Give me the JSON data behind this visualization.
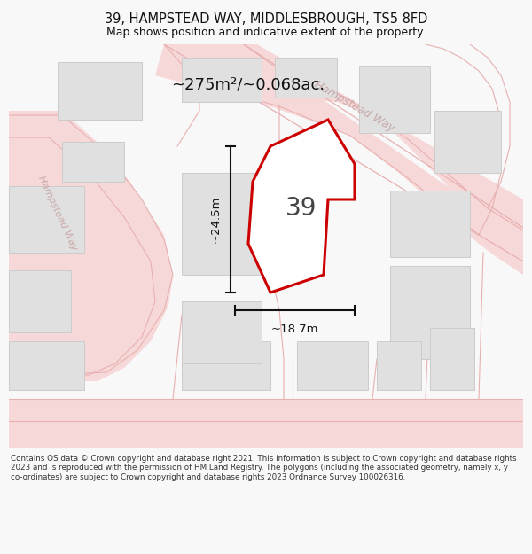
{
  "title_line1": "39, HAMPSTEAD WAY, MIDDLESBROUGH, TS5 8FD",
  "title_line2": "Map shows position and indicative extent of the property.",
  "area_label": "~275m²/~0.068ac.",
  "plot_number": "39",
  "dim_vertical": "~24.5m",
  "dim_horizontal": "~18.7m",
  "footer_text": "Contains OS data © Crown copyright and database right 2021. This information is subject to Crown copyright and database rights 2023 and is reproduced with the permission of HM Land Registry. The polygons (including the associated geometry, namely x, y co-ordinates) are subject to Crown copyright and database rights 2023 Ordnance Survey 100026316.",
  "bg_color": "#f8f8f8",
  "map_bg": "#ffffff",
  "road_fill": "#f7d8d8",
  "road_line": "#e8b0b0",
  "block_color": "#e0e0e0",
  "block_ec": "#cccccc",
  "highlight_color": "#cc0000",
  "street_label_color": "#c8a8a8",
  "dim_color": "#111111",
  "title_color": "#111111",
  "footer_color": "#333333",
  "hampstead_way_diag": "Hampstead Way",
  "hampstead_way_left": "Hampstead Way"
}
